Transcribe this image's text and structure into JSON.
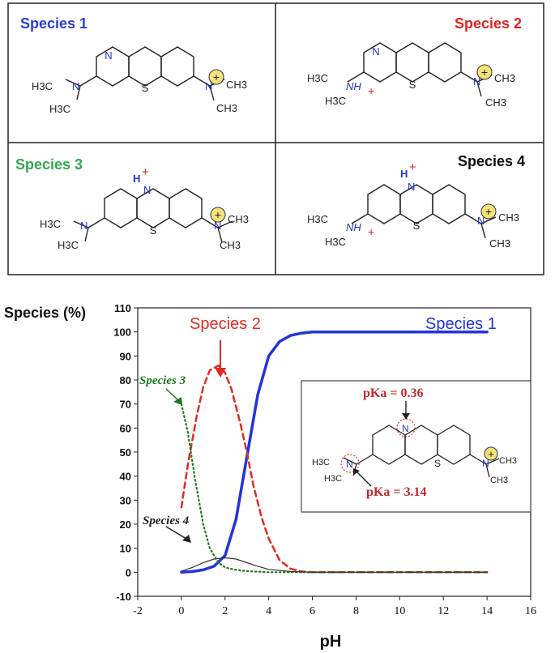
{
  "panels": [
    {
      "title": "Species 1",
      "color": "#2b3fd1"
    },
    {
      "title": "Species 2",
      "color": "#e02424"
    },
    {
      "title": "Species 3",
      "color": "#2fa84f"
    },
    {
      "title": "Species 4",
      "color": "#111111"
    }
  ],
  "atoms": {
    "n": "N",
    "s": "S",
    "plus": "+",
    "nh": "NH",
    "h": "H",
    "h3c": "H3C",
    "ch3": "CH3"
  },
  "inset": {
    "pka1": "pKa = 0.36",
    "pka2": "pKa = 3.14"
  },
  "chart_data": {
    "type": "line",
    "ylabel": "Species (%)",
    "xlabel": "pH",
    "xlim": [
      -2,
      16
    ],
    "ylim": [
      -10,
      110
    ],
    "xticks": [
      "-2",
      "0",
      "2",
      "4",
      "6",
      "8",
      "10",
      "12",
      "14",
      "16"
    ],
    "yticks": [
      "-10",
      "0",
      "10",
      "20",
      "30",
      "40",
      "50",
      "60",
      "70",
      "80",
      "90",
      "100",
      "110"
    ],
    "grid": false,
    "annotations": [
      "Species 1",
      "Species 2",
      "Species 3",
      "Species 4"
    ],
    "series": [
      {
        "name": "Species 1",
        "color": "#2233dd",
        "style": "solid",
        "x": [
          0,
          0.5,
          1,
          1.5,
          2,
          2.5,
          3,
          3.5,
          4,
          4.5,
          5,
          5.5,
          6,
          7,
          8,
          10,
          12,
          14
        ],
        "y": [
          0,
          0.3,
          1,
          2.5,
          7,
          22,
          48,
          74,
          90,
          96,
          98.5,
          99.5,
          100,
          100,
          100,
          100,
          100,
          100
        ]
      },
      {
        "name": "Species 2",
        "color": "#e02a1f",
        "style": "dashed",
        "x": [
          0,
          0.3,
          0.7,
          1,
          1.3,
          1.7,
          2,
          2.3,
          2.7,
          3,
          3.3,
          3.7,
          4,
          4.5,
          5,
          5.5,
          6,
          8,
          14
        ],
        "y": [
          27,
          45,
          65,
          77,
          84,
          86,
          83,
          76,
          62,
          50,
          36,
          22,
          14,
          5,
          1.5,
          0.3,
          0,
          0,
          0
        ]
      },
      {
        "name": "Species 3",
        "color": "#1a7a1a",
        "style": "dotted",
        "x": [
          0,
          0.3,
          0.6,
          1,
          1.3,
          1.7,
          2,
          2.5,
          3,
          4,
          6,
          14
        ],
        "y": [
          70,
          58,
          40,
          20,
          10,
          4,
          2,
          1,
          0.5,
          0,
          0,
          0
        ]
      },
      {
        "name": "Species 4",
        "color": "#333333",
        "style": "solid-thin",
        "x": [
          0,
          0.5,
          1,
          1.5,
          2,
          2.5,
          3,
          3.5,
          4,
          5,
          6,
          8,
          14
        ],
        "y": [
          0.5,
          2,
          4,
          5.5,
          6,
          5.5,
          4,
          2.5,
          1.2,
          0.3,
          0,
          0,
          0
        ]
      }
    ]
  }
}
